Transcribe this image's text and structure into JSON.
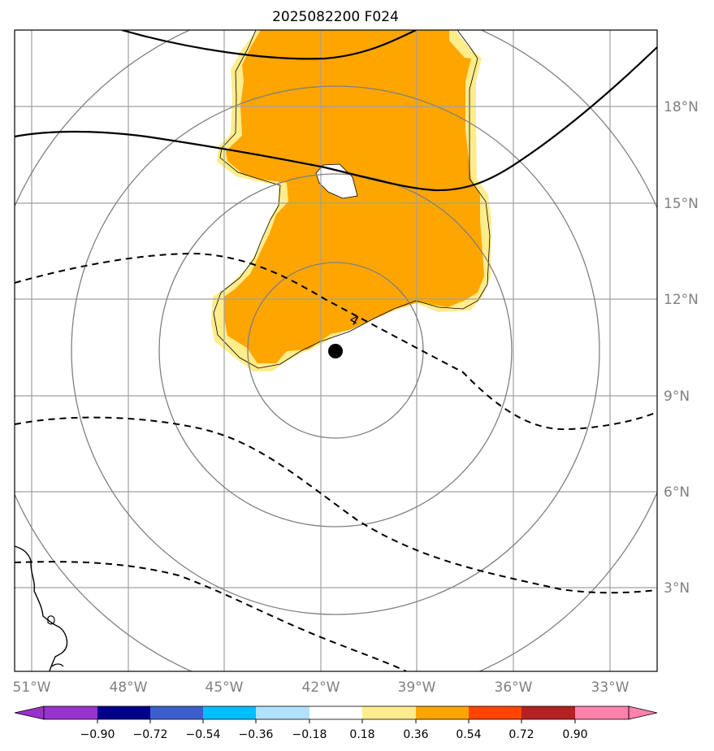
{
  "title": "2025082200 F024",
  "map": {
    "lat_labels": [
      "18°N",
      "15°N",
      "12°N",
      "9°N",
      "6°N",
      "3°N"
    ],
    "lon_labels": [
      "51°W",
      "48°W",
      "45°W",
      "42°W",
      "39°W",
      "36°W",
      "33°W"
    ],
    "contour_label": "4",
    "storm_center": {
      "lon": -41.6,
      "lat": 10.3
    }
  },
  "colorbar": {
    "ticks": [
      "−0.90",
      "−0.72",
      "−0.54",
      "−0.36",
      "−0.18",
      "0.18",
      "0.36",
      "0.54",
      "0.72",
      "0.90"
    ],
    "colors": [
      "#9932CC",
      "#00008B",
      "#3A5FCD",
      "#00BFFF",
      "#B0E2FF",
      "#FFFFFF",
      "#FFEC8B",
      "#FFA500",
      "#FF4500",
      "#B22222",
      "#FF82AB"
    ]
  },
  "colors": {
    "shade_light": "#FFEC8B",
    "shade_main": "#FFA500",
    "grid": "#a0a0a0",
    "range_rings": "#808080"
  }
}
